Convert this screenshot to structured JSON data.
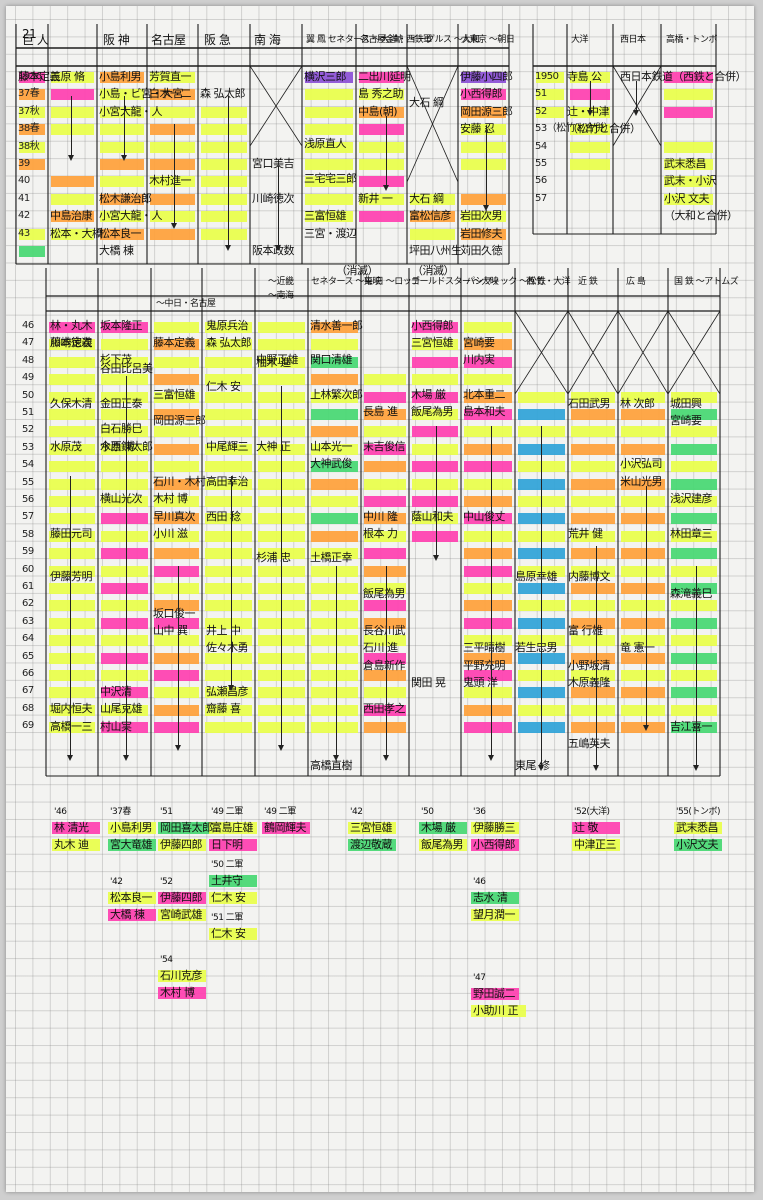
{
  "colors": {
    "orange": "#ffa13a",
    "yellow": "#e9ff4a",
    "pink": "#ff3fb0",
    "green": "#46d872",
    "blue": "#2fa3d8",
    "purple": "#8b4fd6",
    "ink": "#111111"
  },
  "page": {
    "number": "21"
  },
  "upper": {
    "team_headers": [
      {
        "name": "巨 人"
      },
      {
        "name": "阪 神"
      },
      {
        "name": "名古屋"
      },
      {
        "name": "阪 急"
      },
      {
        "name": "南 海"
      },
      {
        "name": "翼 鳳 セネタース 〜大洋・西鉄軍"
      },
      {
        "name": "名古屋金鯱"
      },
      {
        "name": "イーグルス 〜大和"
      },
      {
        "name": "大東京 〜朝日"
      },
      {
        "name": "大洋"
      },
      {
        "name": "西日本"
      },
      {
        "name": "高橋・トンボ"
      }
    ],
    "years_left": [
      "1936",
      "37春",
      "37秋",
      "38春",
      "38秋",
      "39",
      "40",
      "41",
      "42",
      "43"
    ],
    "years_right": [
      "1950",
      "51",
      "52",
      "53（松竹と合併）",
      "54",
      "55",
      "56",
      "57"
    ],
    "names": [
      "三原 脩",
      "小島利男",
      "芳賀直一",
      "横沢三郎",
      "二出川延明",
      "伊藤小四郎",
      "小西得郎",
      "岡田源三郎",
      "小島・ビ宮・大宮",
      "小宮大龍・人",
      "白木一二",
      "森 弘太郎",
      "島 秀之助",
      "中島(朝)",
      "安藤 忍",
      "宮口美吉",
      "川崎徳次",
      "阪本政数",
      "藤本定義",
      "浅原直人",
      "三宅宅三郎",
      "木村進一",
      "新井 一",
      "大石 綱",
      "大石 綱",
      "岩田次男",
      "富松信彦",
      "苅田久徳",
      "中島治康",
      "松木謙治郎",
      "小宮大龍・人",
      "松本良一",
      "松本・大橋",
      "大橋 棟",
      "三富恒雄",
      "三宮・渡辺",
      "坪田八州生",
      "岩田修夫",
      "寺島 公",
      "辻・中津",
      "（松竹と合併）",
      "西日本鉄道（西鉄と合併）",
      "武末悉昌",
      "武末・小沢",
      "小沢 文夫",
      "（大和と合併）",
      "（消滅）",
      "（消滅）"
    ]
  },
  "middle": {
    "team_headers": [
      {
        "name": "〜中日・名古屋"
      },
      {
        "name": "〜近畿"
      },
      {
        "name": "〜南海"
      },
      {
        "name": "セネタース 〜東映"
      },
      {
        "name": "毎 日 〜ロッテ"
      },
      {
        "name": "ゴールドスター 〜大映"
      },
      {
        "name": "パシフィック 〜松竹・大洋"
      },
      {
        "name": "西 鉄"
      },
      {
        "name": "近 鉄"
      },
      {
        "name": "広 島"
      },
      {
        "name": "国 鉄 〜アトムズ"
      }
    ],
    "years": [
      "46",
      "47",
      "48",
      "49",
      "50",
      "51",
      "52",
      "53",
      "54",
      "55",
      "56",
      "57",
      "58",
      "59",
      "60",
      "61",
      "62",
      "63",
      "64",
      "65",
      "66",
      "67",
      "68",
      "69"
    ],
    "names": [
      "林・丸木",
      "坂本隆正",
      "鬼原兵治",
      "清水善一郎",
      "小西得郎",
      "藤本定義",
      "川崎徳次",
      "杉下茂",
      "中野正雄",
      "柚木 進",
      "関口清雄",
      "三宮恒雄",
      "川内実",
      "谷田比呂美",
      "三富恒雄",
      "仁木 安",
      "上林繁次郎",
      "木場 厳",
      "北本重二",
      "久保木清",
      "金田正泰",
      "長島 進",
      "飯尾為男",
      "島本和夫",
      "岡田源三郎",
      "山本光一",
      "末吉俊信",
      "宮崎要",
      "石田武男",
      "林 次郎",
      "城田興",
      "今西錬太郎",
      "大神武俊",
      "小沢弘司",
      "宮崎要",
      "水原茂",
      "水原 博",
      "大神 正",
      "中尾輝三",
      "米山光男",
      "浅沢建彦",
      "藤本定義",
      "石川・木村",
      "高田幸治",
      "白石勝巳",
      "森 弘太郎",
      "横山光次",
      "木村 博",
      "早川真次",
      "西田 稔",
      "中川 隆",
      "蔭山和夫",
      "中山俊丈",
      "藤田元司",
      "小川 滋",
      "杉浦 忠",
      "土橋正幸",
      "根本 力",
      "荒井 健",
      "林田章三",
      "伊藤芳明",
      "坂口俊一",
      "山中 巽",
      "飯尾為男",
      "島原幸雄",
      "内藤博文",
      "森滝義巳",
      "井上 中",
      "佐々木勇",
      "長谷川武",
      "石川 進",
      "倉島新作",
      "関田 晃",
      "富 行雄",
      "竜 憲一",
      "三平晴樹",
      "平野充明",
      "鬼頭 洋",
      "若生忠男",
      "小野坂清",
      "木原義隆",
      "堀内恒夫",
      "中沢清",
      "山尾克雄",
      "弘瀬昌彦",
      "西田孝之",
      "五嶋英夫",
      "吉江喜一",
      "高橋一三",
      "村山実",
      "齋藤 喜",
      "高橋直樹",
      "東尾 修"
    ]
  },
  "lower": {
    "groups": [
      {
        "year": "'46",
        "names": [
          "林 清光",
          "丸木 迪"
        ]
      },
      {
        "year": "'37春",
        "names": [
          "小島利男",
          "宮大竜雄"
        ]
      },
      {
        "year": "'51",
        "names": [
          "岡田喜太郎",
          "伊藤四郎"
        ]
      },
      {
        "year": "'49 二軍",
        "names": [
          "富島庄雄",
          "日下明"
        ]
      },
      {
        "year": "'49 二軍",
        "names": [
          "鶴岡輝夫"
        ]
      },
      {
        "year": "'42",
        "names": [
          "三宮恒雄",
          "渡辺敬蔵"
        ]
      },
      {
        "year": "'50",
        "names": [
          "木場 厳",
          "飯尾為男"
        ]
      },
      {
        "year": "'36",
        "names": [
          "伊藤勝三",
          "小西得郎"
        ]
      },
      {
        "year": "'52(大洋)",
        "names": [
          "辻 敬",
          "中津正三"
        ]
      },
      {
        "year": "'55(トンボ)",
        "names": [
          "武末悉昌",
          "小沢文夫"
        ]
      },
      {
        "year": "'50 二軍",
        "names": [
          "土井守",
          "仁木 安"
        ]
      },
      {
        "year": "'42",
        "names": [
          "松本良一",
          "大橋 棟"
        ]
      },
      {
        "year": "'52",
        "names": [
          "伊藤四郎",
          "宮崎武雄"
        ]
      },
      {
        "year": "'51 二軍",
        "names": [
          "仁木 安"
        ]
      },
      {
        "year": "'46",
        "names": [
          "志水 清",
          "望月潤一"
        ]
      },
      {
        "year": "'54",
        "names": [
          "石川克彦",
          "木村 博"
        ]
      },
      {
        "year": "'47",
        "names": [
          "野田誠二",
          "小助川 正"
        ]
      }
    ]
  }
}
